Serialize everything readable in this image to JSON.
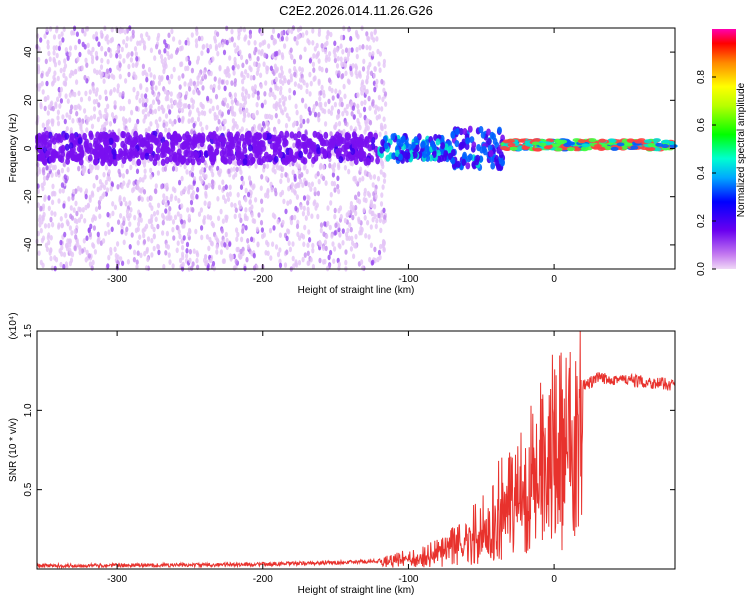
{
  "title": "C2E2.2026.014.11.26.G26",
  "chart_data": [
    {
      "type": "heatmap",
      "xlabel": "Height of straight line (km)",
      "ylabel": "Frequency (Hz)",
      "xlim": [
        -355,
        83
      ],
      "ylim": [
        -50,
        50
      ],
      "xticks": [
        -300,
        -200,
        -100,
        0
      ],
      "xtick_labels": [
        "-300",
        "-200",
        "-100",
        "0"
      ],
      "yticks": [
        -40,
        -20,
        0,
        20,
        40
      ],
      "ytick_labels": [
        "-40",
        "-20",
        "0",
        "20",
        "40"
      ],
      "colorbar": {
        "label": "Normalized spectral amplitude",
        "range": [
          0,
          1
        ],
        "ticks": [
          0,
          0.2,
          0.4,
          0.6,
          0.8
        ],
        "tick_labels": [
          "0.0",
          "0.2",
          "0.4",
          "0.6",
          "0.8"
        ]
      },
      "bands": [
        {
          "x": [
            -355,
            -120
          ],
          "freq_center": 0,
          "freq_halfwidth": 6,
          "amplitude": 0.15
        },
        {
          "x": [
            -120,
            -70
          ],
          "freq_center": 0,
          "freq_halfwidth": 5,
          "amplitude": 0.35
        },
        {
          "x": [
            -70,
            -35
          ],
          "freq_center": 0,
          "freq_halfwidth": 8,
          "amplitude": 0.3
        },
        {
          "x": [
            -35,
            83
          ],
          "freq_center": 1.5,
          "freq_halfwidth": 2,
          "amplitude": 0.55
        }
      ]
    },
    {
      "type": "line",
      "xlabel": "Height of straight line (km)",
      "ylabel": "SNR (10 * v/v)",
      "y_scale_label": "(x10⁴)",
      "xlim": [
        -355,
        83
      ],
      "ylim": [
        0,
        1.5
      ],
      "xticks": [
        -300,
        -200,
        -100,
        0
      ],
      "xtick_labels": [
        "-300",
        "-200",
        "-100",
        "0"
      ],
      "yticks": [
        0.5,
        1.0,
        1.5
      ],
      "ytick_labels": [
        "0.5",
        "1.0",
        "1.5"
      ],
      "color": "#e8322d",
      "series": [
        {
          "name": "SNR",
          "x": [
            -355,
            -250,
            -200,
            -150,
            -120,
            -100,
            -80,
            -60,
            -45,
            -35,
            -25,
            -15,
            -5,
            0,
            5,
            10,
            20,
            30,
            40,
            60,
            83
          ],
          "values": [
            0.02,
            0.025,
            0.03,
            0.04,
            0.05,
            0.08,
            0.12,
            0.22,
            0.35,
            0.5,
            0.6,
            0.7,
            0.8,
            0.9,
            1.0,
            1.05,
            1.15,
            1.2,
            1.2,
            1.18,
            1.16
          ]
        }
      ]
    }
  ]
}
